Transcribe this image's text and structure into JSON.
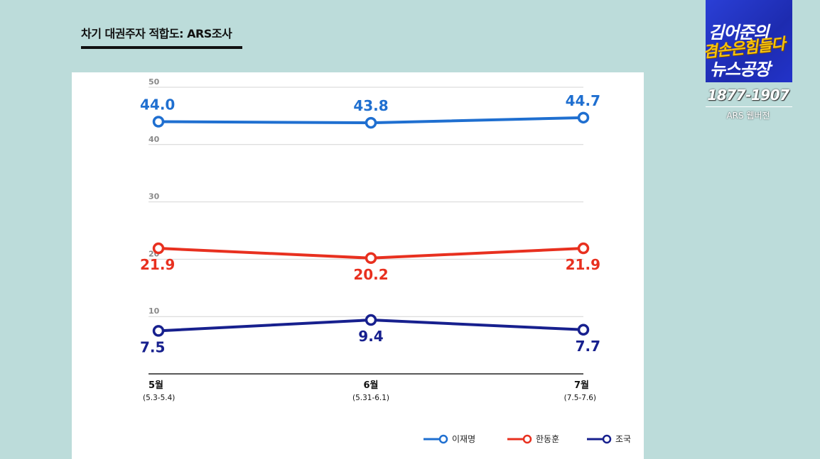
{
  "page": {
    "title": "차기 대권주자 적합도: ARS조사"
  },
  "logo": {
    "line1": "김어준의",
    "line2": "겸손은힘들다",
    "line3": "뉴스공장",
    "date_range": "1877-1907",
    "subtitle": "ARS 웹버전"
  },
  "colors": {
    "series_lee": "#1f6fd0",
    "series_han": "#e8301f",
    "series_cho": "#17208e",
    "grid": "#d4d4d4",
    "axis": "#222222",
    "tick": "#8a8a8a"
  },
  "chart_data": {
    "type": "line",
    "title": "차기 대권주자 적합도: ARS조사",
    "categories": [
      "5월",
      "6월",
      "7월"
    ],
    "category_sublabels": [
      "(5.3-5.4)",
      "(5.31-6.1)",
      "(7.5-7.6)"
    ],
    "ylim": [
      0,
      50
    ],
    "yticks": [
      10,
      20,
      30,
      40,
      50
    ],
    "grid": true,
    "legend_position": "bottom-right",
    "series": [
      {
        "name": "이재명",
        "values": [
          44.0,
          43.8,
          44.7
        ],
        "labels": [
          "44.0",
          "43.8",
          "44.7"
        ],
        "label_position": "above",
        "color": "#1f6fd0"
      },
      {
        "name": "한동훈",
        "values": [
          21.9,
          20.2,
          21.9
        ],
        "labels": [
          "21.9",
          "20.2",
          "21.9"
        ],
        "label_position": "below",
        "color": "#e8301f"
      },
      {
        "name": "조국",
        "values": [
          7.5,
          9.4,
          7.7
        ],
        "labels": [
          "7.5",
          "9.4",
          "7.7"
        ],
        "label_position": "below",
        "color": "#17208e"
      }
    ]
  }
}
